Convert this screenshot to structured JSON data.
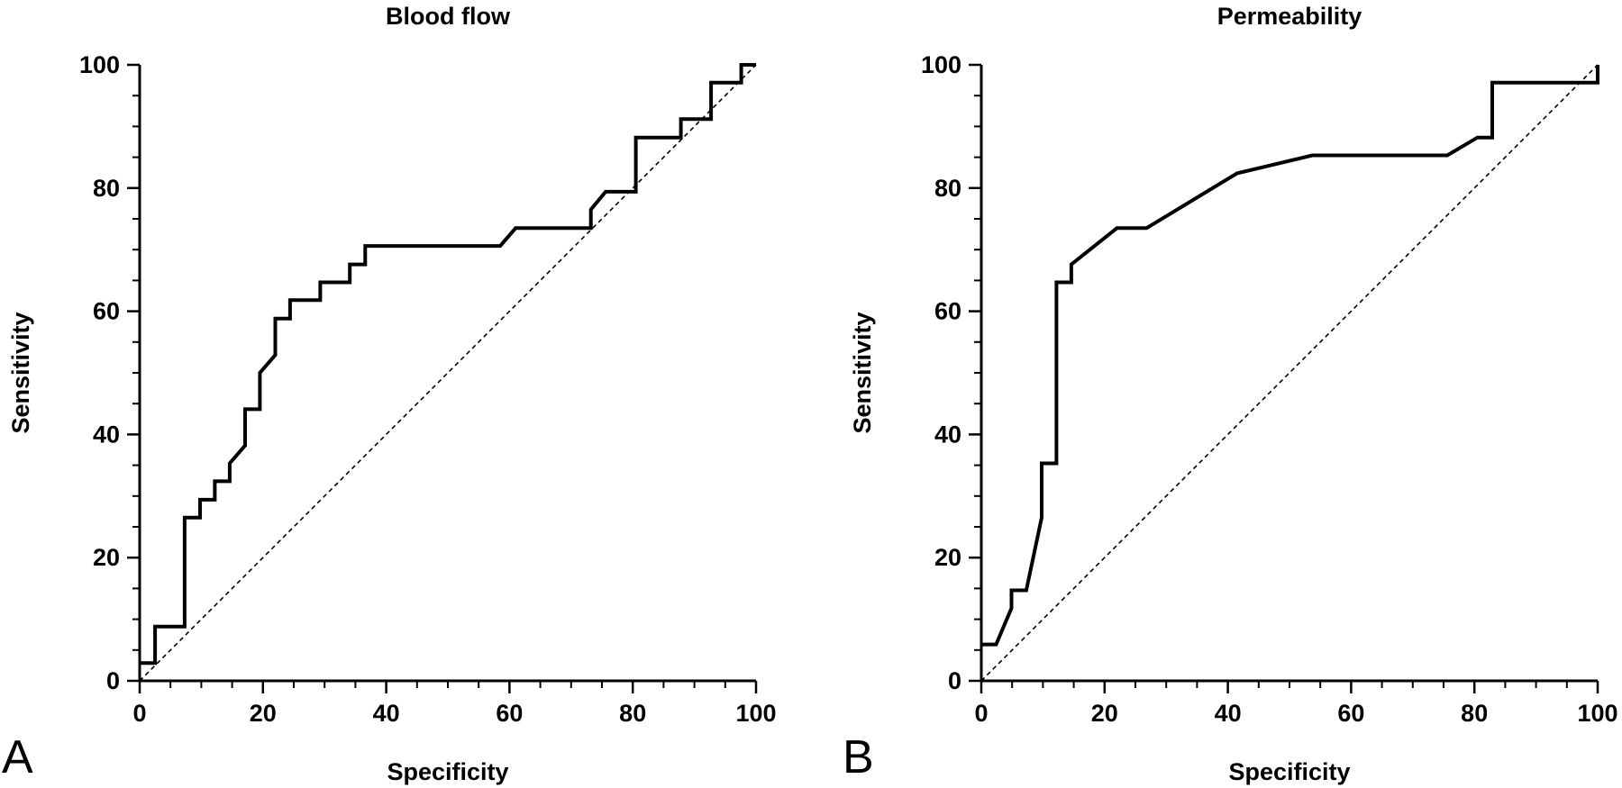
{
  "chart_data": [
    {
      "type": "line",
      "panel_label": "A",
      "title": "Blood flow",
      "xlabel": "Specificity",
      "ylabel": "Sensitivity",
      "xlim": [
        0,
        100
      ],
      "ylim": [
        0,
        100
      ],
      "xticks": [
        "0",
        "20",
        "40",
        "60",
        "80",
        "100"
      ],
      "yticks": [
        "0",
        "20",
        "40",
        "60",
        "80",
        "100"
      ],
      "reference_line": "dashed diagonal",
      "series": [
        {
          "x": [
            0,
            2.5,
            2.5,
            7.3,
            7.3,
            9.8,
            9.8,
            12.2,
            12.2,
            14.6,
            14.6,
            17.1,
            17.1,
            19.5,
            19.5,
            22.0,
            22.0,
            24.4,
            24.4,
            29.3,
            29.3,
            34.1,
            34.1,
            36.6,
            36.6,
            58.5,
            61.0,
            73.2,
            73.2,
            75.6,
            80.5,
            80.5,
            87.8,
            87.8,
            92.7,
            92.7,
            97.6,
            97.6,
            100
          ],
          "y": [
            2.9,
            2.9,
            8.8,
            8.8,
            26.5,
            26.5,
            29.4,
            29.4,
            32.4,
            32.4,
            35.3,
            38.2,
            44.1,
            44.1,
            50.0,
            52.9,
            58.8,
            58.8,
            61.8,
            61.8,
            64.7,
            64.7,
            67.6,
            67.6,
            70.6,
            70.6,
            73.5,
            73.5,
            76.5,
            79.4,
            79.4,
            88.2,
            88.2,
            91.2,
            91.2,
            97.1,
            97.1,
            100,
            100
          ]
        }
      ]
    },
    {
      "type": "line",
      "panel_label": "B",
      "title": "Permeability",
      "xlabel": "Specificity",
      "ylabel": "Sensitivity",
      "xlim": [
        0,
        100
      ],
      "ylim": [
        0,
        100
      ],
      "xticks": [
        "0",
        "20",
        "40",
        "60",
        "80",
        "100"
      ],
      "yticks": [
        "0",
        "20",
        "40",
        "60",
        "80",
        "100"
      ],
      "reference_line": "dashed diagonal",
      "series": [
        {
          "x": [
            0,
            2.4,
            4.9,
            4.9,
            7.3,
            9.8,
            9.8,
            12.2,
            12.2,
            14.6,
            14.6,
            22.0,
            26.8,
            41.5,
            53.7,
            75.6,
            80.5,
            82.9,
            82.9,
            100,
            100
          ],
          "y": [
            5.9,
            5.9,
            11.8,
            14.7,
            14.7,
            26.5,
            35.3,
            35.3,
            64.7,
            64.7,
            67.6,
            73.5,
            73.5,
            82.4,
            85.3,
            85.3,
            88.2,
            88.2,
            97.1,
            97.1,
            100
          ]
        }
      ]
    }
  ]
}
